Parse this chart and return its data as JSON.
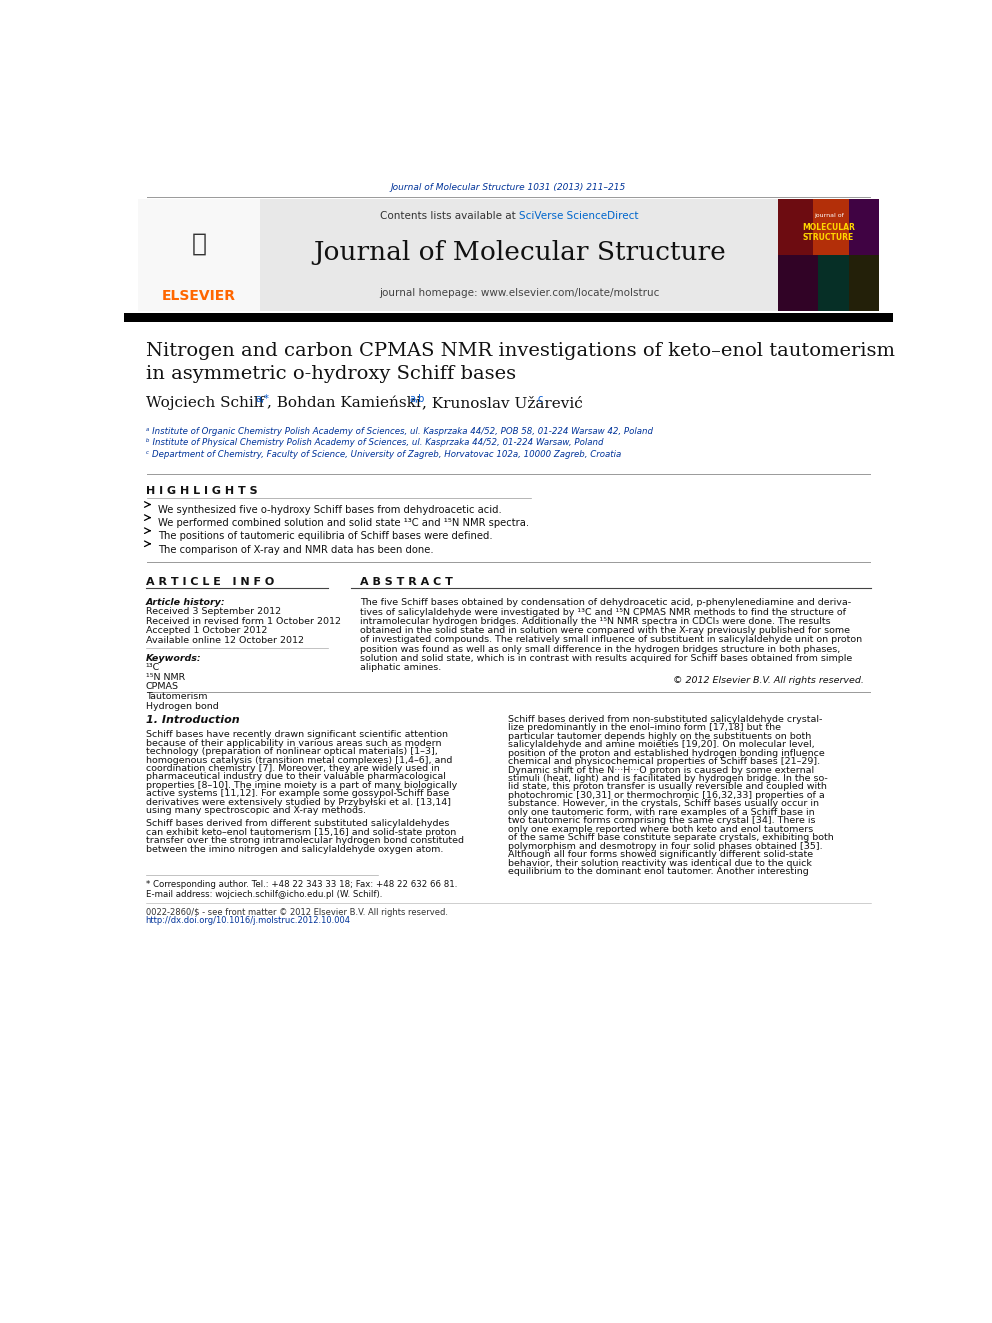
{
  "page_width": 9.92,
  "page_height": 13.23,
  "bg_color": "#ffffff",
  "journal_ref": "Journal of Molecular Structure 1031 (2013) 211–215",
  "journal_ref_color": "#003399",
  "sciverse_color": "#0066cc",
  "journal_name": "Journal of Molecular Structure",
  "homepage_line": "journal homepage: www.elsevier.com/locate/molstruc",
  "elsevier_color": "#FF6600",
  "elsevier_text": "ELSEVIER",
  "article_title_line1": "Nitrogen and carbon CPMAS NMR investigations of keto–enol tautomerism",
  "article_title_line2": "in asymmetric o-hydroxy Schiff bases",
  "authors_main": "Wojciech Schilf",
  "authors_sup1": "a,*",
  "authors2": ", Bohdan Kamieński",
  "authors_sup2": "a,b",
  "authors3": ", Krunoslav Užarević",
  "authors_sup3": "c",
  "affil_a": "ᵃ Institute of Organic Chemistry Polish Academy of Sciences, ul. Kasprzaka 44/52, POB 58, 01-224 Warsaw 42, Poland",
  "affil_b": "ᵇ Institute of Physical Chemistry Polish Academy of Sciences, ul. Kasprzaka 44/52, 01-224 Warsaw, Poland",
  "affil_c": "ᶜ Department of Chemistry, Faculty of Science, University of Zagreb, Horvatovac 102a, 10000 Zagreb, Croatia",
  "highlights_header": "H I G H L I G H T S",
  "highlight1": "We synthesized five o-hydroxy Schiff bases from dehydroacetic acid.",
  "highlight2": "We performed combined solution and solid state ¹³C and ¹⁵N NMR spectra.",
  "highlight3": "The positions of tautomeric equilibria of Schiff bases were defined.",
  "highlight4": "The comparison of X-ray and NMR data has been done.",
  "article_info_header": "A R T I C L E   I N F O",
  "abstract_header": "A B S T R A C T",
  "article_history_label": "Article history:",
  "received1": "Received 3 September 2012",
  "received2": "Received in revised form 1 October 2012",
  "accepted": "Accepted 1 October 2012",
  "available": "Available online 12 October 2012",
  "keywords_label": "Keywords:",
  "keyword1": "¹³C",
  "keyword2": "¹⁵N NMR",
  "keyword3": "CPMAS",
  "keyword4": "Tautomerism",
  "keyword5": "Hydrogen bond",
  "copyright": "© 2012 Elsevier B.V. All rights reserved.",
  "intro_header": "1. Introduction",
  "footnote1": "* Corresponding author. Tel.: +48 22 343 33 18; Fax: +48 22 632 66 81.",
  "footnote2": "E-mail address: wojciech.schilf@icho.edu.pl (W. Schilf).",
  "footer1": "0022-2860/$ - see front matter © 2012 Elsevier B.V. All rights reserved.",
  "footer2": "http://dx.doi.org/10.1016/j.molstruc.2012.10.004",
  "dark_bar_color": "#000000",
  "header_gray": "#e8e8e8",
  "abstract_lines": [
    "The five Schiff bases obtained by condensation of dehydroacetic acid, p-phenylenediamine and deriva-",
    "tives of salicylaldehyde were investigated by ¹³C and ¹⁵N CPMAS NMR methods to find the structure of",
    "intramolecular hydrogen bridges. Additionally the ¹⁵N NMR spectra in CDCl₃ were done. The results",
    "obtained in the solid state and in solution were compared with the X-ray previously published for some",
    "of investigated compounds. The relatively small influence of substituent in salicylaldehyde unit on proton",
    "position was found as well as only small difference in the hydrogen bridges structure in both phases,",
    "solution and solid state, which is in contrast with results acquired for Schiff bases obtained from simple",
    "aliphatic amines."
  ],
  "intro_left_lines": [
    "Schiff bases have recently drawn significant scientific attention",
    "because of their applicability in various areas such as modern",
    "technology (preparation of nonlinear optical materials) [1–3],",
    "homogenous catalysis (transition metal complexes) [1,4–6], and",
    "coordination chemistry [7]. Moreover, they are widely used in",
    "pharmaceutical industry due to their valuable pharmacological",
    "properties [8–10]. The imine moiety is a part of many biologically",
    "active systems [11,12]. For example some gossypol-Schiff base",
    "derivatives were extensively studied by Przybyłski et al. [13,14]",
    "using many spectroscopic and X-ray methods."
  ],
  "intro_left_lines2": [
    "Schiff bases derived from different substituted salicylaldehydes",
    "can exhibit keto–enol tautomerism [15,16] and solid-state proton",
    "transfer over the strong intramolecular hydrogen bond constituted",
    "between the imino nitrogen and salicylaldehyde oxygen atom."
  ],
  "intro_right_lines": [
    "Schiff bases derived from non-substituted salicylaldehyde crystal-",
    "lize predominantly in the enol–imino form [17,18] but the",
    "particular tautomer depends highly on the substituents on both",
    "salicylaldehyde and amine moieties [19,20]. On molecular level,",
    "position of the proton and established hydrogen bonding influence",
    "chemical and physicochemical properties of Schiff bases [21–29].",
    "Dynamic shift of the N···H···O proton is caused by some external",
    "stimuli (heat, light) and is facilitated by hydrogen bridge. In the so-",
    "lid state, this proton transfer is usually reversible and coupled with",
    "photochromic [30,31] or thermochromic [16,32,33] properties of a",
    "substance. However, in the crystals, Schiff bases usually occur in",
    "only one tautomeric form, with rare examples of a Schiff base in",
    "two tautomeric forms comprising the same crystal [34]. There is",
    "only one example reported where both keto and enol tautomers",
    "of the same Schiff base constitute separate crystals, exhibiting both",
    "polymorphism and desmotropy in four solid phases obtained [35].",
    "Although all four forms showed significantly different solid-state",
    "behavior, their solution reactivity was identical due to the quick",
    "equilibrium to the dominant enol tautomer. Another interesting"
  ]
}
